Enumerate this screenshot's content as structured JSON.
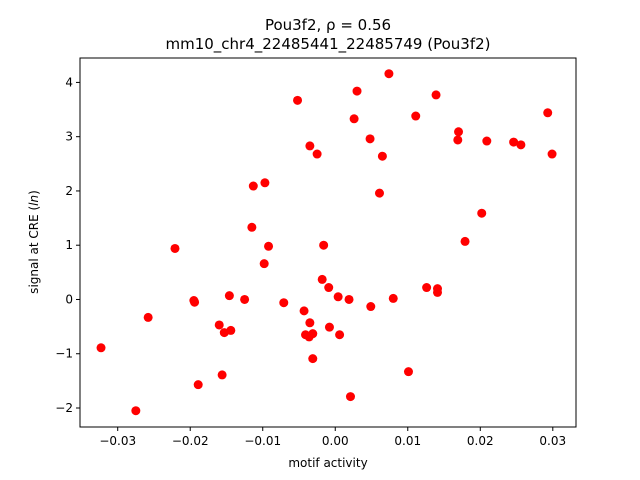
{
  "chart_data": {
    "type": "scatter",
    "title_line1": "Pou3f2, ρ = 0.56",
    "title_line2": "mm10_chr4_22485441_22485749 (Pou3f2)",
    "xlabel": "motif activity",
    "ylabel_prefix": "signal at CRE (",
    "ylabel_italic": "ln",
    "ylabel_suffix": ")",
    "xlim": [
      -0.0352,
      0.0332
    ],
    "ylim": [
      -2.35,
      4.45
    ],
    "xticks": [
      -0.03,
      -0.02,
      -0.01,
      0.0,
      0.01,
      0.02,
      0.03
    ],
    "xtick_labels": [
      "−0.03",
      "−0.02",
      "−0.01",
      "0.00",
      "0.01",
      "0.02",
      "0.03"
    ],
    "yticks": [
      -2,
      -1,
      0,
      1,
      2,
      3,
      4
    ],
    "ytick_labels": [
      "−2",
      "−1",
      "0",
      "1",
      "2",
      "3",
      "4"
    ],
    "grid": false,
    "point_color": "#ff0000",
    "points": [
      [
        -0.0323,
        -0.89
      ],
      [
        -0.0275,
        -2.05
      ],
      [
        -0.0258,
        -0.33
      ],
      [
        -0.0221,
        0.94
      ],
      [
        -0.0195,
        -0.02
      ],
      [
        -0.0194,
        -0.05
      ],
      [
        -0.0189,
        -1.57
      ],
      [
        -0.016,
        -0.47
      ],
      [
        -0.0156,
        -1.39
      ],
      [
        -0.0153,
        -0.61
      ],
      [
        -0.0146,
        0.07
      ],
      [
        -0.0144,
        -0.57
      ],
      [
        -0.0125,
        0.0
      ],
      [
        -0.0115,
        1.33
      ],
      [
        -0.0113,
        2.09
      ],
      [
        -0.0098,
        0.66
      ],
      [
        -0.0097,
        2.15
      ],
      [
        -0.0092,
        0.98
      ],
      [
        -0.0071,
        -0.06
      ],
      [
        -0.0052,
        3.67
      ],
      [
        -0.0043,
        -0.21
      ],
      [
        -0.0041,
        -0.65
      ],
      [
        -0.0036,
        -0.69
      ],
      [
        -0.0035,
        -0.43
      ],
      [
        -0.0035,
        2.83
      ],
      [
        -0.0031,
        -1.09
      ],
      [
        -0.0031,
        -0.63
      ],
      [
        -0.0025,
        2.68
      ],
      [
        -0.0018,
        0.37
      ],
      [
        -0.0016,
        1.0
      ],
      [
        -0.0009,
        0.22
      ],
      [
        -0.0008,
        -0.51
      ],
      [
        0.0004,
        0.05
      ],
      [
        0.0006,
        -0.65
      ],
      [
        0.0019,
        0.0
      ],
      [
        0.0021,
        -1.79
      ],
      [
        0.0026,
        3.33
      ],
      [
        0.003,
        3.84
      ],
      [
        0.0048,
        2.96
      ],
      [
        0.0049,
        -0.13
      ],
      [
        0.0061,
        1.96
      ],
      [
        0.0065,
        2.64
      ],
      [
        0.0074,
        4.16
      ],
      [
        0.008,
        0.02
      ],
      [
        0.0101,
        -1.33
      ],
      [
        0.0111,
        3.38
      ],
      [
        0.0126,
        0.22
      ],
      [
        0.0139,
        3.77
      ],
      [
        0.0141,
        0.2
      ],
      [
        0.0141,
        0.13
      ],
      [
        0.0169,
        2.94
      ],
      [
        0.017,
        3.09
      ],
      [
        0.0179,
        1.07
      ],
      [
        0.0202,
        1.59
      ],
      [
        0.0209,
        2.92
      ],
      [
        0.0246,
        2.9
      ],
      [
        0.0256,
        2.85
      ],
      [
        0.0293,
        3.44
      ],
      [
        0.0299,
        2.68
      ]
    ]
  }
}
